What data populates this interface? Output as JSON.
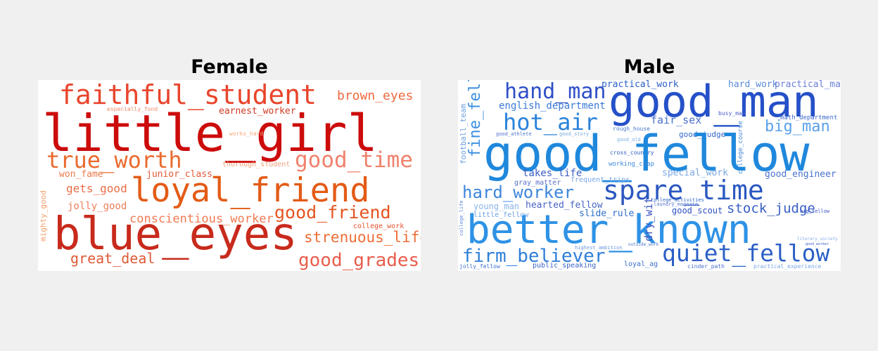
{
  "panels": {
    "female": {
      "title": "Female",
      "words": [
        {
          "text": "faithful_student",
          "color": "#e8452c"
        },
        {
          "text": "brown_eyes",
          "color": "#ec6a3e"
        },
        {
          "text": "especially_fond",
          "color": "#f08a6a"
        },
        {
          "text": "earnest_worker",
          "color": "#d03a22"
        },
        {
          "text": "little_girl",
          "color": "#cc0b0b"
        },
        {
          "text": "works_hard",
          "color": "#f4a77e"
        },
        {
          "text": "true_worth",
          "color": "#e96b2e"
        },
        {
          "text": "good_time",
          "color": "#f0826c"
        },
        {
          "text": "won_fame",
          "color": "#ec7b4b"
        },
        {
          "text": "junior_class",
          "color": "#e45a3a"
        },
        {
          "text": "thorough_student",
          "color": "#f2a07a"
        },
        {
          "text": "loyal_friend",
          "color": "#e35b16"
        },
        {
          "text": "gets_good",
          "color": "#ea6e48"
        },
        {
          "text": "jolly_good",
          "color": "#ee7e58"
        },
        {
          "text": "good_friend",
          "color": "#e4551f"
        },
        {
          "text": "mighty_good",
          "color": "#f39f6a"
        },
        {
          "text": "conscientious_worker",
          "color": "#f07a52"
        },
        {
          "text": "blue_eyes",
          "color": "#c82a1c"
        },
        {
          "text": "college_work",
          "color": "#e8522e"
        },
        {
          "text": "strenuous_life",
          "color": "#ee6d36"
        },
        {
          "text": "great_deal",
          "color": "#de5a37"
        },
        {
          "text": "good_grades",
          "color": "#e85d4c"
        }
      ]
    },
    "male": {
      "title": "Male",
      "words": [
        {
          "text": "hand_man",
          "color": "#2f4fc7"
        },
        {
          "text": "practical_work",
          "color": "#2a5fc4"
        },
        {
          "text": "good_man",
          "color": "#2550c8"
        },
        {
          "text": "hard_work",
          "color": "#5a8ad6"
        },
        {
          "text": "practical_man",
          "color": "#6a7ed8"
        },
        {
          "text": "english_department",
          "color": "#3a7ad6"
        },
        {
          "text": "busy_man",
          "color": "#4a5fc8"
        },
        {
          "text": "math_department",
          "color": "#3c66cc"
        },
        {
          "text": "football_team",
          "color": "#6aa0e0"
        },
        {
          "text": "fine_fellow",
          "color": "#3d8fe0"
        },
        {
          "text": "hot_air",
          "color": "#2a82da"
        },
        {
          "text": "fair_sex",
          "color": "#4a70cc"
        },
        {
          "text": "big_man",
          "color": "#5aa0e8"
        },
        {
          "text": "good_athlete",
          "color": "#4a6fcf"
        },
        {
          "text": "good_story",
          "color": "#78a8e0"
        },
        {
          "text": "rough_house",
          "color": "#4a78d0"
        },
        {
          "text": "good_judge",
          "color": "#3366cc"
        },
        {
          "text": "good_old",
          "color": "#7aaee6"
        },
        {
          "text": "cross_country",
          "color": "#2a5cc2"
        },
        {
          "text": "college_course",
          "color": "#4a8ad8"
        },
        {
          "text": "good_fellow",
          "color": "#1f88dc"
        },
        {
          "text": "working_chap",
          "color": "#3a88d8"
        },
        {
          "text": "takes_life",
          "color": "#3a5ec4"
        },
        {
          "text": "special_work",
          "color": "#7aa8e2"
        },
        {
          "text": "good_engineer",
          "color": "#4a72cc"
        },
        {
          "text": "gray_matter",
          "color": "#5a6fc8"
        },
        {
          "text": "frequent_trips",
          "color": "#78a6e4"
        },
        {
          "text": "hard_worker",
          "color": "#3e86dc"
        },
        {
          "text": "spare_time",
          "color": "#2b58c0"
        },
        {
          "text": "college_activities",
          "color": "#2e62c8"
        },
        {
          "text": "young_man",
          "color": "#8ab4ea"
        },
        {
          "text": "hearted_fellow",
          "color": "#4a64c6"
        },
        {
          "text": "laundry_magnate",
          "color": "#5b78d0"
        },
        {
          "text": "big_fellow",
          "color": "#3a4fc0"
        },
        {
          "text": "stock_judge",
          "color": "#3a5fc6"
        },
        {
          "text": "little_fellow",
          "color": "#6a9ee2"
        },
        {
          "text": "slide_rule",
          "color": "#3070cc"
        },
        {
          "text": "good_scout",
          "color": "#2c4ec2"
        },
        {
          "text": "college_life",
          "color": "#5a86d8"
        },
        {
          "text": "better_known",
          "color": "#2e92e6"
        },
        {
          "text": "dry_wit",
          "color": "#3a56c0"
        },
        {
          "text": "literary_society",
          "color": "#8ab0ea"
        },
        {
          "text": "highest_ambition",
          "color": "#6a96e0"
        },
        {
          "text": "outside_work",
          "color": "#4a70cc"
        },
        {
          "text": "good_worker",
          "color": "#3a5ec4"
        },
        {
          "text": "firm_believer",
          "color": "#2f7ed8"
        },
        {
          "text": "quiet_fellow",
          "color": "#2b5fc6"
        },
        {
          "text": "jolly_fellow",
          "color": "#3a6fcc"
        },
        {
          "text": "public_speaking",
          "color": "#3a64c6"
        },
        {
          "text": "loyal_ag",
          "color": "#3a70cc"
        },
        {
          "text": "cinder_path",
          "color": "#4a72cc"
        },
        {
          "text": "practical_experience",
          "color": "#7aa8e6"
        }
      ]
    }
  }
}
